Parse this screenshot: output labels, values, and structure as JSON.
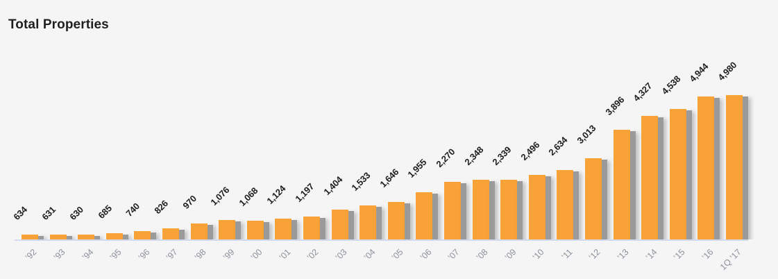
{
  "title": "Total Properties",
  "colors": {
    "background": "#F5F5F5",
    "bar": "#F8A237",
    "bar_shadow": "#9A9A9A",
    "axis_line": "#D3DAEC",
    "value_label": "#1E1E1E",
    "tick_label": "#8C919C",
    "title": "#1F1F1F"
  },
  "chart_data": {
    "type": "bar",
    "title": "Total Properties",
    "categories": [
      "’92",
      "’93",
      "’94",
      "’95",
      "’96",
      "’97",
      "’98",
      "’99",
      "’00",
      "’01",
      "’02",
      "’03",
      "’04",
      "’05",
      "’06",
      "’07",
      "’08",
      "’09",
      "’10",
      "’11",
      "’12",
      "’13",
      "’14",
      "’15",
      "’16",
      "1Q ’17"
    ],
    "values": [
      634,
      631,
      630,
      685,
      740,
      826,
      970,
      1076,
      1068,
      1124,
      1197,
      1404,
      1533,
      1646,
      1955,
      2270,
      2348,
      2339,
      2496,
      2634,
      3013,
      3896,
      4327,
      4538,
      4944,
      4980
    ],
    "value_labels": [
      "634",
      "631",
      "630",
      "685",
      "740",
      "826",
      "970",
      "1,076",
      "1,068",
      "1,124",
      "1,197",
      "1,404",
      "1,533",
      "1,646",
      "1,955",
      "2,270",
      "2,348",
      "2,339",
      "2,496",
      "2,634",
      "3,013",
      "3,896",
      "4,327",
      "4,538",
      "4,944",
      "4,980"
    ],
    "xlabel": "",
    "ylabel": "",
    "ylim": [
      480,
      5000
    ],
    "grid": false,
    "legend": false,
    "bar_color": "#F8A237",
    "data_label_rotation": -45,
    "tick_label_rotation": -45
  }
}
